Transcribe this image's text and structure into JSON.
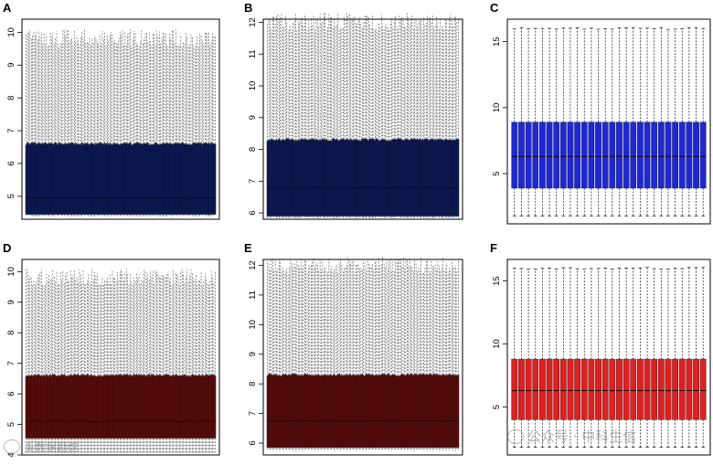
{
  "chart_data": [
    {
      "panel": "A",
      "type": "boxplot",
      "n_boxes": 150,
      "fill": "#0c1a55",
      "ylim": [
        4.3,
        10.4
      ],
      "yticks": [
        "5",
        "6",
        "7",
        "8",
        "9",
        "10"
      ],
      "stats": {
        "min": 4.4,
        "q1": 4.45,
        "median": 4.95,
        "q3": 6.6,
        "max": 9.8
      }
    },
    {
      "panel": "B",
      "type": "boxplot",
      "n_boxes": 150,
      "fill": "#0c1a55",
      "ylim": [
        5.8,
        12.1
      ],
      "yticks": [
        "6",
        "7",
        "8",
        "9",
        "10",
        "11",
        "12"
      ],
      "stats": {
        "min": 5.85,
        "q1": 5.9,
        "median": 6.8,
        "q3": 8.3,
        "max": 12.0
      }
    },
    {
      "panel": "C",
      "type": "boxplot",
      "n_boxes": 28,
      "fill": "#1d27e0",
      "ylim": [
        1.2,
        16.7
      ],
      "yticks": [
        "5",
        "10",
        "15"
      ],
      "stats": {
        "min": 1.8,
        "q1": 3.9,
        "median": 6.3,
        "q3": 8.9,
        "max": 16.0
      }
    },
    {
      "panel": "D",
      "type": "boxplot",
      "n_boxes": 150,
      "fill": "#5a0c0c",
      "ylim": [
        4.0,
        10.4
      ],
      "yticks": [
        "4",
        "5",
        "6",
        "7",
        "8",
        "9",
        "10"
      ],
      "stats": {
        "min": 4.05,
        "q1": 4.55,
        "median": 5.1,
        "q3": 6.6,
        "max": 9.8
      }
    },
    {
      "panel": "E",
      "type": "boxplot",
      "n_boxes": 150,
      "fill": "#5a0c0c",
      "ylim": [
        5.6,
        12.2
      ],
      "yticks": [
        "6",
        "7",
        "8",
        "9",
        "10",
        "11",
        "12"
      ],
      "stats": {
        "min": 5.75,
        "q1": 5.85,
        "median": 6.75,
        "q3": 8.3,
        "max": 12.0
      }
    },
    {
      "panel": "F",
      "type": "boxplot",
      "n_boxes": 28,
      "fill": "#e81c1c",
      "ylim": [
        1.2,
        16.7
      ],
      "yticks": [
        "5",
        "10",
        "15"
      ],
      "stats": {
        "min": 1.8,
        "q1": 4.0,
        "median": 6.3,
        "q3": 8.8,
        "max": 16.0
      }
    }
  ],
  "watermarks": {
    "left": "头数据题馆",
    "right": "公众号 · 中科生信"
  }
}
